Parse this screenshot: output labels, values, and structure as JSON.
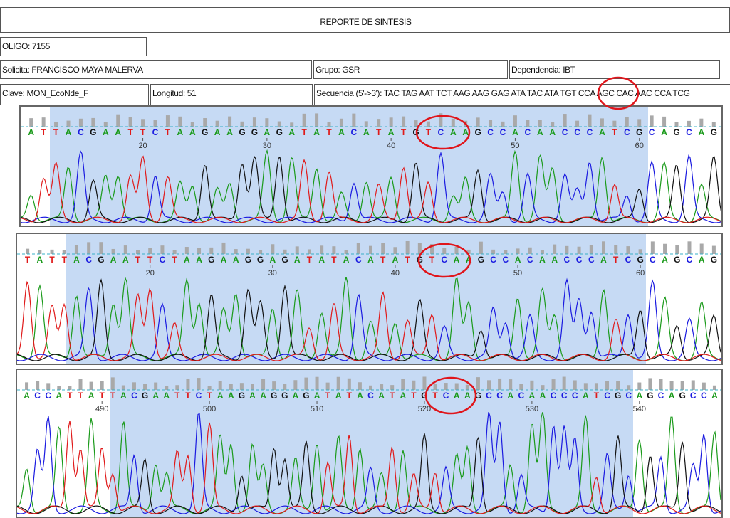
{
  "header": {
    "title": "REPORTE DE SINTESIS",
    "oligo": "OLIGO: 7155",
    "solicita": "Solicita: FRANCISCO MAYA MALERVA",
    "grupo": "Grupo: GSR",
    "dependencia": "Dependencia: IBT",
    "clave": "Clave: MON_EcoNde_F",
    "longitud": "Longitud: 51",
    "secuencia": "Secuencia (5'->3'): TAC TAG AAT TCT AAG AAG GAG ATA TAC ATA TGT CCA AGC CAC AAC CCA TCG"
  },
  "chromatograms": [
    {
      "bases": "ATTACGAATTCTAAGAAGGAGATATACATATGTCAAGCCACAACCCATCGCAGCAG",
      "positions": [
        20,
        30,
        40,
        50,
        60
      ]
    },
    {
      "bases": "TATTACGAATTCTAAGAAGGAGATATACATATGTCAAGCCACAACCCATCGCAGCAG",
      "positions": [
        20,
        30,
        40,
        50,
        60
      ]
    },
    {
      "bases": "ACCATTATTACGAATTCTAAGAAGGAGATATACATATGTCAAGCCACAACCCATCGCAGCAGCCA",
      "positions": [
        490,
        500,
        510,
        520,
        530,
        540
      ]
    }
  ]
}
